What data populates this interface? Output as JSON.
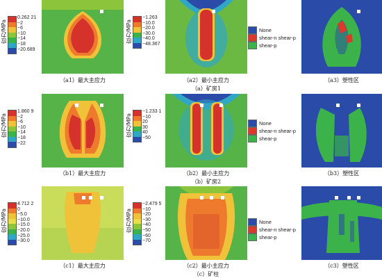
{
  "colors": {
    "plastic_none": "#2a4ba8",
    "plastic_shear_n_shear_p": "#d83a2c",
    "plastic_shear_p": "#3bb34a"
  },
  "unit_label": "应力/MPa",
  "rows": [
    {
      "id": "a",
      "group_caption": "（a）矿房1",
      "max_legend": [
        "0.262 21",
        "−2",
        "−6",
        "−10",
        "−14",
        "−18",
        "−20.689"
      ],
      "min_legend": [
        "−1.263",
        "−10.0",
        "−20.0",
        "−30.0",
        "−40.0",
        "−48.367"
      ],
      "plastic_legend": [
        "None",
        "shear-n  shear-p",
        "shear-p"
      ],
      "captions": [
        "（a1）最大主应力",
        "（a2）最小主应力",
        "（a3）塑性区"
      ]
    },
    {
      "id": "b",
      "group_caption": "（b）矿房2",
      "max_legend": [
        "1.860 9",
        "−2",
        "−6",
        "−10",
        "−14",
        "−18",
        "−22"
      ],
      "min_legend": [
        "−1.233 1",
        "−10",
        "20",
        "30",
        "40",
        "−50"
      ],
      "plastic_legend": [
        "None",
        "shear-n  shear-p",
        "shear-p"
      ],
      "captions": [
        "（b1）最大主应力",
        "（b2）最小主应力",
        "（b3）塑性区"
      ]
    },
    {
      "id": "c",
      "group_caption": "（c）矿柱",
      "max_legend": [
        "4.712 2",
        "0",
        "−5.0",
        "−10.0",
        "−15.0",
        "−20.0",
        "−25.0",
        "−30.0"
      ],
      "min_legend": [
        "−2.479 5",
        "−10",
        "−20",
        "−30",
        "−40",
        "−50",
        "−60",
        "−70"
      ],
      "plastic_legend": [
        "None",
        "shear-n  shear-p",
        "shear-p"
      ],
      "captions": [
        "（c1）最大主应力",
        "（c2）最小主应力",
        "（c3）塑性区"
      ]
    }
  ]
}
